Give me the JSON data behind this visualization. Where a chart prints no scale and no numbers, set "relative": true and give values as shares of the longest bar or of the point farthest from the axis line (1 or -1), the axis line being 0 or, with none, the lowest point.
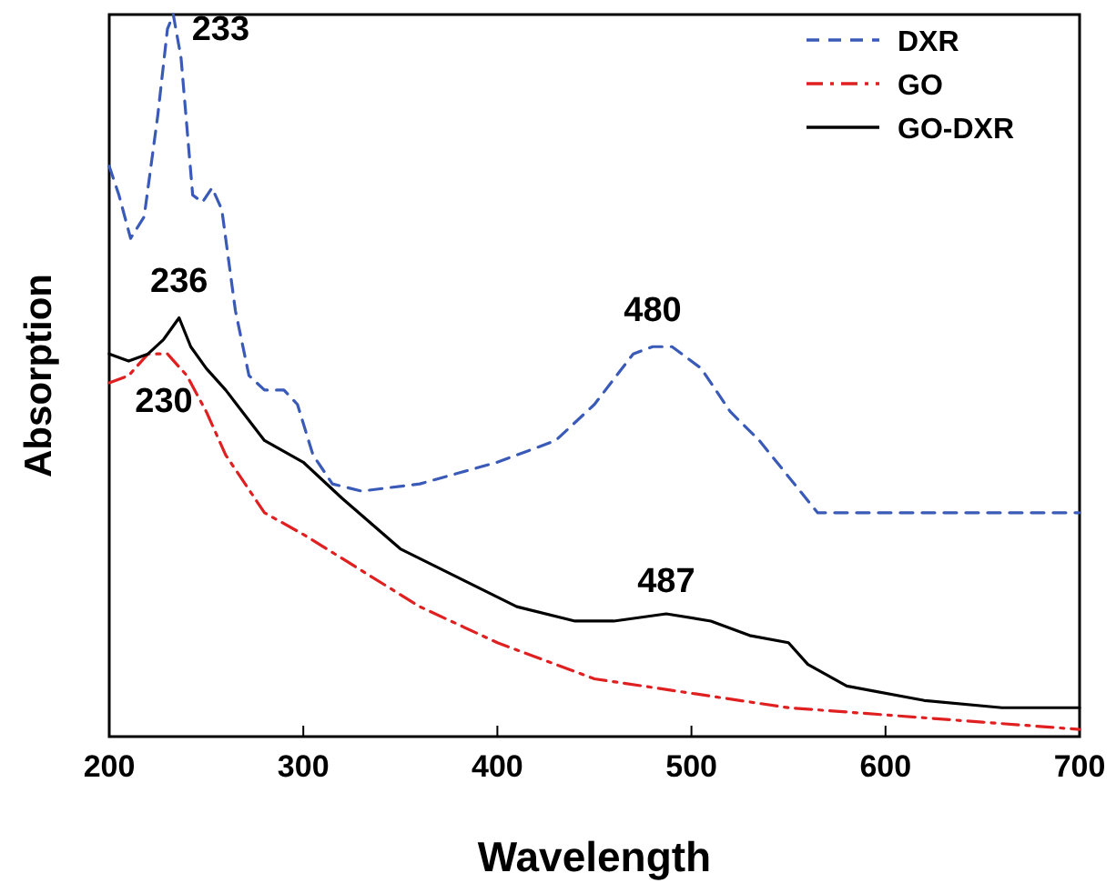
{
  "chart_data": {
    "type": "line",
    "relative": true,
    "xlabel": "Wavelength",
    "ylabel": "Absorption",
    "xlim": [
      200,
      700
    ],
    "xticks": [
      200,
      300,
      400,
      500,
      600,
      700
    ],
    "legend": "top right",
    "series": [
      {
        "name": "DXR",
        "color": "#3a5ab8",
        "line_style": "dashed",
        "x": [
          200,
          205,
          211,
          218,
          225,
          230,
          233,
          237,
          243,
          248,
          253,
          258,
          265,
          272,
          280,
          290,
          297,
          305,
          315,
          330,
          360,
          400,
          430,
          450,
          470,
          480,
          490,
          505,
          520,
          535,
          550,
          565,
          580,
          700
        ],
        "values": [
          0.79,
          0.75,
          0.69,
          0.72,
          0.86,
          0.98,
          1.0,
          0.94,
          0.75,
          0.74,
          0.76,
          0.73,
          0.59,
          0.5,
          0.48,
          0.48,
          0.46,
          0.39,
          0.35,
          0.34,
          0.35,
          0.38,
          0.41,
          0.46,
          0.53,
          0.54,
          0.54,
          0.51,
          0.45,
          0.41,
          0.36,
          0.31,
          0.31,
          0.31
        ]
      },
      {
        "name": "GO",
        "color": "#e02020",
        "line_style": "dashdot",
        "x": [
          200,
          210,
          220,
          230,
          240,
          250,
          260,
          280,
          300,
          330,
          360,
          400,
          450,
          500,
          550,
          600,
          650,
          700
        ],
        "values": [
          0.49,
          0.5,
          0.53,
          0.53,
          0.5,
          0.45,
          0.39,
          0.31,
          0.28,
          0.23,
          0.18,
          0.13,
          0.08,
          0.06,
          0.04,
          0.03,
          0.02,
          0.01
        ]
      },
      {
        "name": "GO-DXR",
        "color": "#000000",
        "line_style": "solid",
        "x": [
          200,
          210,
          220,
          228,
          236,
          242,
          250,
          260,
          280,
          300,
          320,
          350,
          380,
          410,
          440,
          460,
          487,
          510,
          530,
          550,
          560,
          580,
          620,
          660,
          700
        ],
        "values": [
          0.53,
          0.52,
          0.53,
          0.55,
          0.58,
          0.54,
          0.51,
          0.48,
          0.41,
          0.38,
          0.33,
          0.26,
          0.22,
          0.18,
          0.16,
          0.16,
          0.17,
          0.16,
          0.14,
          0.13,
          0.1,
          0.07,
          0.05,
          0.04,
          0.04
        ]
      }
    ],
    "annotations": [
      {
        "text": "233",
        "x": 233,
        "y": 1.0
      },
      {
        "text": "236",
        "x": 236,
        "y": 0.58
      },
      {
        "text": "230",
        "x": 230,
        "y": 0.53
      },
      {
        "text": "480",
        "x": 480,
        "y": 0.54
      },
      {
        "text": "487",
        "x": 487,
        "y": 0.17
      }
    ]
  }
}
